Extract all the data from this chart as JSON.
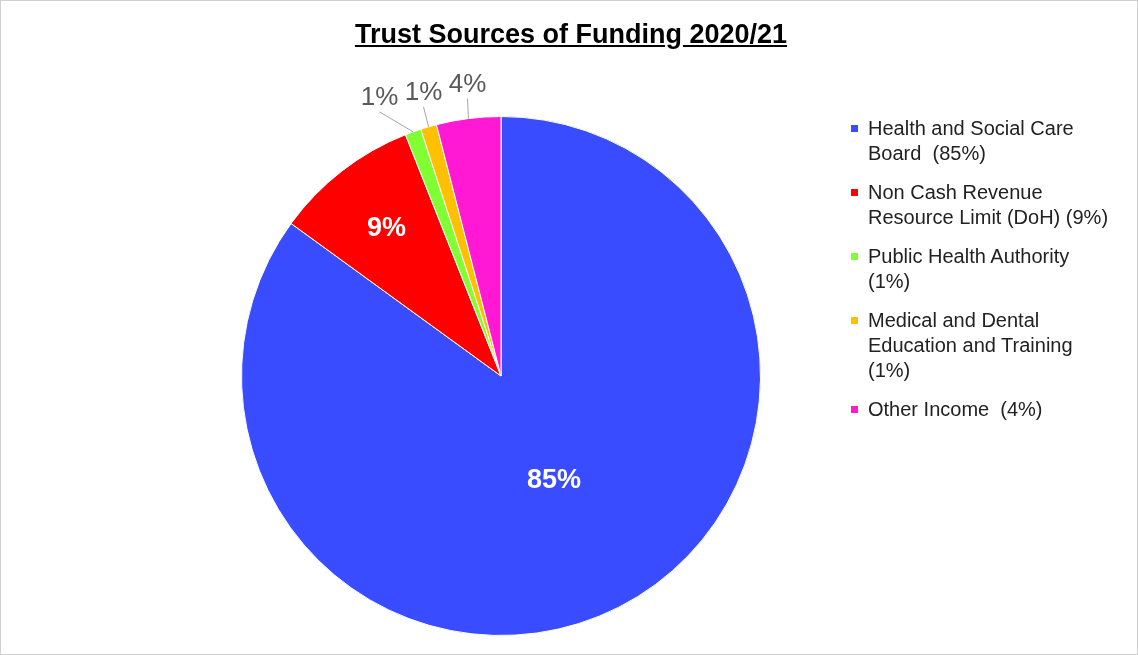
{
  "chart_data": {
    "type": "pie",
    "title": "Trust Sources of Funding 2020/21",
    "categories": [
      "Health and Social Care Board  (85%)",
      "Non Cash Revenue Resource Limit (DoH) (9%)",
      "Public Health Authority (1%)",
      "Medical and Dental Education and Training (1%)",
      "Other Income  (4%)"
    ],
    "values": [
      85,
      9,
      1,
      1,
      4
    ],
    "colors": [
      "#3a4cff",
      "#ff0000",
      "#80ff33",
      "#ffc000",
      "#ff19d4"
    ],
    "value_labels": [
      "85%",
      "9%",
      "1%",
      "1%",
      "4%"
    ],
    "legend": "right"
  }
}
